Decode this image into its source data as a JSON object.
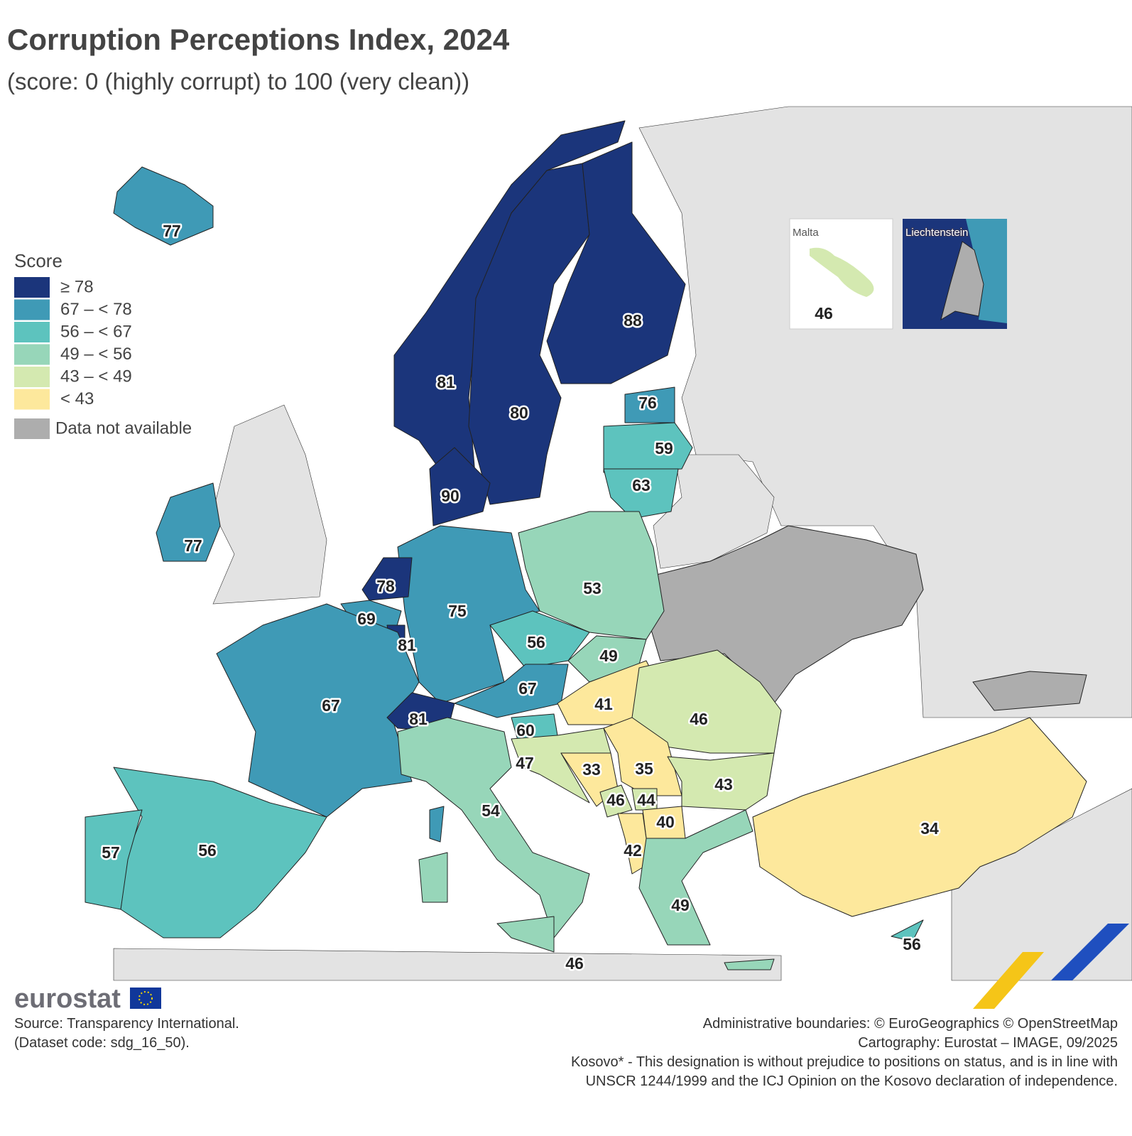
{
  "header": {
    "title": "Corruption Perceptions Index, 2024",
    "subtitle": "(score: 0 (highly corrupt) to 100 (very clean))"
  },
  "legend": {
    "title": "Score",
    "items": [
      {
        "label": "≥ 78",
        "color": "#1b357b"
      },
      {
        "label": "67 – < 78",
        "color": "#3f9ab6"
      },
      {
        "label": "56 – < 67",
        "color": "#5dc3be"
      },
      {
        "label": "49 – < 56",
        "color": "#97d6b9"
      },
      {
        "label": "43 – < 49",
        "color": "#d4e9b0"
      },
      {
        "label": "< 43",
        "color": "#fde89c"
      },
      {
        "label": "Data not available",
        "color": "#adadad"
      }
    ]
  },
  "map": {
    "scores": [
      77,
      77,
      81,
      80,
      88,
      76,
      59,
      63,
      90,
      78,
      69,
      81,
      75,
      53,
      56,
      49,
      67,
      41,
      46,
      67,
      81,
      60,
      47,
      33,
      35,
      43,
      46,
      44,
      40,
      42,
      54,
      56,
      57,
      49,
      34,
      56,
      46
    ]
  },
  "insets": [
    {
      "name": "Malta",
      "value": 46
    },
    {
      "name": "Liechtenstein"
    }
  ],
  "footer": {
    "logo": "eurostat",
    "source": [
      "Source: Transparency International.",
      "(Dataset code: sdg_16_50)."
    ],
    "credits": [
      "Administrative boundaries: © EuroGeographics © OpenStreetMap",
      "Cartography: Eurostat – IMAGE, 09/2025",
      "Kosovo* - This designation is without prejudice to positions on status, and is in line with",
      "UNSCR 1244/1999 and the ICJ Opinion on the Kosovo declaration of independence."
    ]
  }
}
